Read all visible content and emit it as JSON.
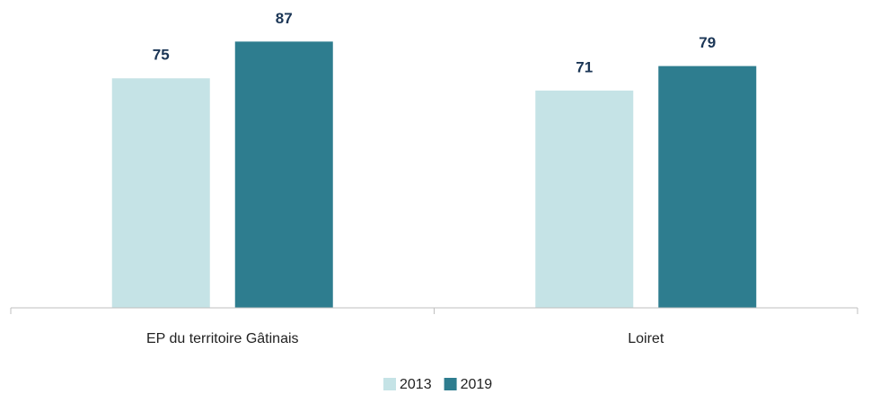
{
  "chart_data": {
    "type": "bar",
    "categories": [
      "EP du territoire Gâtinais",
      "Loiret"
    ],
    "series": [
      {
        "name": "2013",
        "color": "#c5e3e6",
        "values": [
          75,
          71
        ]
      },
      {
        "name": "2019",
        "color": "#2e7d8f",
        "values": [
          87,
          79
        ]
      }
    ],
    "ylim": [
      0,
      100
    ]
  }
}
